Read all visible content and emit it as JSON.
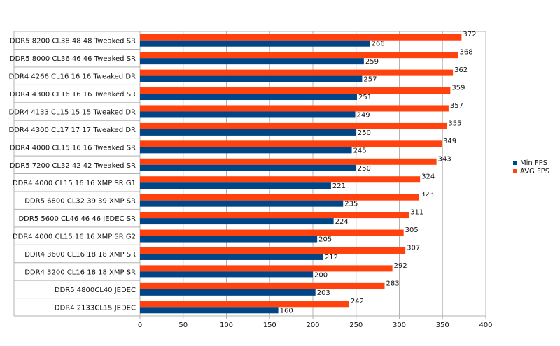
{
  "chart_data": {
    "type": "bar",
    "orientation": "horizontal",
    "title": "",
    "xlabel": "",
    "ylabel": "",
    "xlim": [
      0,
      400
    ],
    "x_ticks": [
      0,
      50,
      100,
      150,
      200,
      250,
      300,
      350,
      400
    ],
    "grid": "vertical",
    "legend_position": "right",
    "categories": [
      "DDR5 8200 CL38 48 48 Tweaked SR",
      "DDR5 8000 CL36 46 46 Tweaked SR",
      "DDR4 4266 CL16 16 16 Tweaked DR",
      "DDR4 4300 CL16 16 16 Tweaked SR",
      "DDR4 4133 CL15 15 15 Tweaked DR",
      "DDR4 4300 CL17 17 17 Tweaked DR",
      "DDR4 4000 CL15 16 16 Tweaked SR",
      "DDR5 7200 CL32 42 42 Tweaked SR",
      "DDR4 4000 CL15 16 16 XMP SR G1",
      "DDR5 6800 CL32 39 39 XMP SR",
      "DDR5 5600 CL46 46 46 JEDEC SR",
      "DDR4 4000 CL15 16 16 XMP SR G2",
      "DDR4 3600 CL16 18 18 XMP SR",
      "DDR4 3200 CL16 18 18 XMP SR",
      "DDR5 4800CL40 JEDEC",
      "DDR4 2133CL15 JEDEC"
    ],
    "series": [
      {
        "name": "AVG FPS",
        "color": "#ff420e",
        "values": [
          372,
          368,
          362,
          359,
          357,
          355,
          349,
          343,
          324,
          323,
          311,
          305,
          307,
          292,
          283,
          242
        ]
      },
      {
        "name": "Min FPS",
        "color": "#004586",
        "values": [
          266,
          259,
          257,
          251,
          249,
          250,
          245,
          250,
          221,
          235,
          224,
          205,
          212,
          200,
          203,
          160
        ]
      }
    ],
    "legend": [
      {
        "name": "Min FPS",
        "color": "#004586"
      },
      {
        "name": "AVG FPS",
        "color": "#ff420e"
      }
    ]
  }
}
